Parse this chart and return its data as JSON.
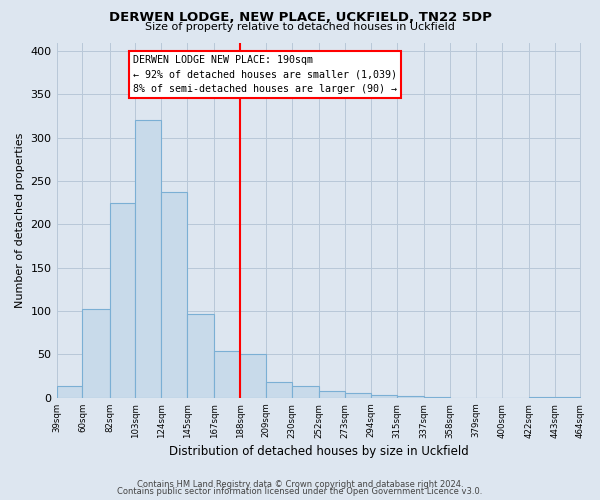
{
  "title": "DERWEN LODGE, NEW PLACE, UCKFIELD, TN22 5DP",
  "subtitle": "Size of property relative to detached houses in Uckfield",
  "xlabel": "Distribution of detached houses by size in Uckfield",
  "ylabel": "Number of detached properties",
  "bar_color": "#c8daea",
  "bar_edge_color": "#7bafd4",
  "background_color": "#dde6f0",
  "plot_background": "#dde6f0",
  "grid_color": "#b8c8d8",
  "bin_edges": [
    39,
    60,
    82,
    103,
    124,
    145,
    167,
    188,
    209,
    230,
    252,
    273,
    294,
    315,
    337,
    358,
    379,
    400,
    422,
    443,
    464
  ],
  "bin_labels": [
    "39sqm",
    "60sqm",
    "82sqm",
    "103sqm",
    "124sqm",
    "145sqm",
    "167sqm",
    "188sqm",
    "209sqm",
    "230sqm",
    "252sqm",
    "273sqm",
    "294sqm",
    "315sqm",
    "337sqm",
    "358sqm",
    "379sqm",
    "400sqm",
    "422sqm",
    "443sqm",
    "464sqm"
  ],
  "counts": [
    14,
    103,
    225,
    320,
    238,
    97,
    54,
    51,
    18,
    14,
    8,
    5,
    3,
    2,
    1,
    0,
    0,
    0,
    1,
    1
  ],
  "marker_value": 188,
  "marker_label": "DERWEN LODGE NEW PLACE: 190sqm",
  "annotation_line1": "← 92% of detached houses are smaller (1,039)",
  "annotation_line2": "8% of semi-detached houses are larger (90) →",
  "ylim": [
    0,
    410
  ],
  "yticks": [
    0,
    50,
    100,
    150,
    200,
    250,
    300,
    350,
    400
  ],
  "footnote1": "Contains HM Land Registry data © Crown copyright and database right 2024.",
  "footnote2": "Contains public sector information licensed under the Open Government Licence v3.0."
}
